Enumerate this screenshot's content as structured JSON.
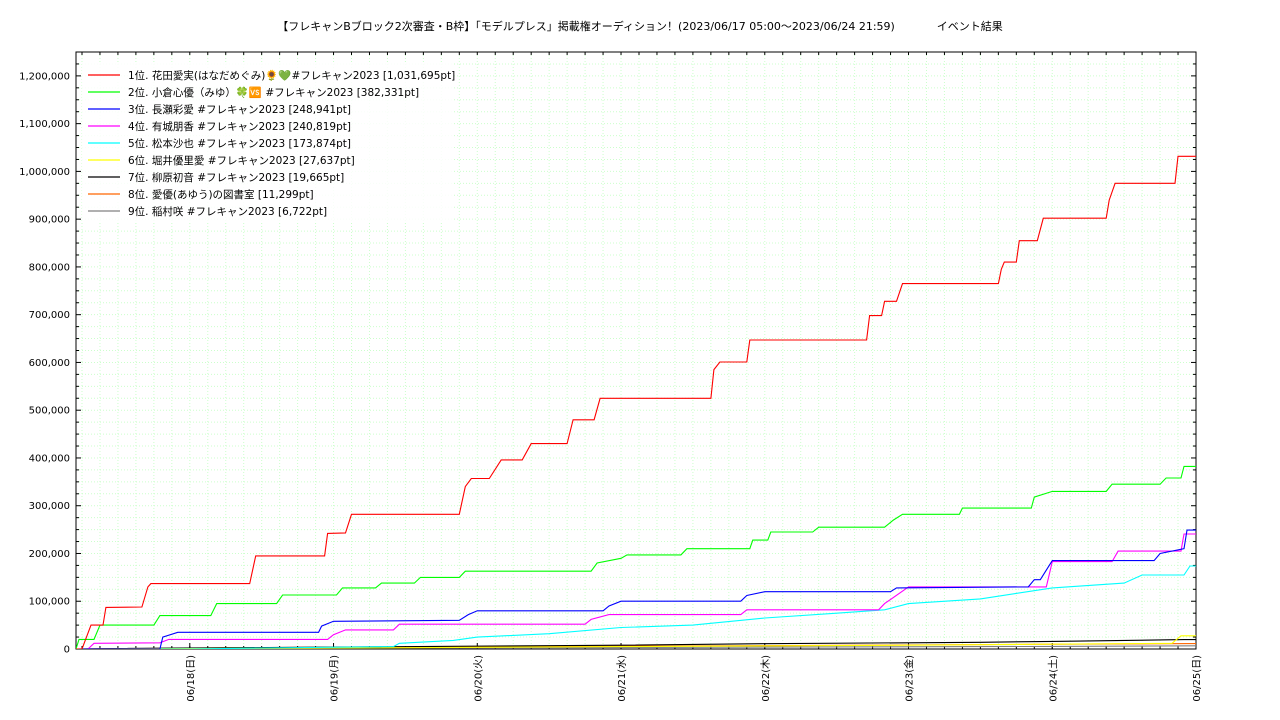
{
  "chart_data": {
    "type": "line",
    "title": "【フレキャンBブロック2次審査・B枠】「モデルプレス」掲載権オーディション！(2023/06/17 05:00〜2023/06/24 21:59)            イベント結果",
    "xlabel": "",
    "ylabel": "",
    "ylim": [
      0,
      1250000
    ],
    "xlim": [
      "2023-06-17 05:00",
      "2023-06-25 00:00"
    ],
    "grid": true,
    "legend_position": "top-left",
    "yticks": [
      {
        "value": 0,
        "label": "0"
      },
      {
        "value": 100000,
        "label": "100,000"
      },
      {
        "value": 200000,
        "label": "200,000"
      },
      {
        "value": 300000,
        "label": "300,000"
      },
      {
        "value": 400000,
        "label": "400,000"
      },
      {
        "value": 500000,
        "label": "500,000"
      },
      {
        "value": 600000,
        "label": "600,000"
      },
      {
        "value": 700000,
        "label": "700,000"
      },
      {
        "value": 800000,
        "label": "800,000"
      },
      {
        "value": 900000,
        "label": "900,000"
      },
      {
        "value": 1000000,
        "label": "1,000,000"
      },
      {
        "value": 1100000,
        "label": "1,100,000"
      },
      {
        "value": 1200000,
        "label": "1,200,000"
      }
    ],
    "xticks": [
      {
        "x": "2023-06-18 00:00",
        "label": "06/18(日)"
      },
      {
        "x": "2023-06-19 00:00",
        "label": "06/19(月)"
      },
      {
        "x": "2023-06-20 00:00",
        "label": "06/20(火)"
      },
      {
        "x": "2023-06-21 00:00",
        "label": "06/21(水)"
      },
      {
        "x": "2023-06-22 00:00",
        "label": "06/22(木)"
      },
      {
        "x": "2023-06-23 00:00",
        "label": "06/23(金)"
      },
      {
        "x": "2023-06-24 00:00",
        "label": "06/24(土)"
      },
      {
        "x": "2023-06-25 00:00",
        "label": "06/25(日)"
      }
    ],
    "series": [
      {
        "name": "1位. 花田愛実(はなだめぐみ)🌻💚#フレキャン2023 [1,031,695pt]",
        "color": "#ff0000",
        "points": [
          [
            "2023-06-17 05:00",
            0
          ],
          [
            "2023-06-17 06:00",
            0
          ],
          [
            "2023-06-17 07:30",
            50000
          ],
          [
            "2023-06-17 09:30",
            50000
          ],
          [
            "2023-06-17 10:00",
            87000
          ],
          [
            "2023-06-17 16:00",
            88000
          ],
          [
            "2023-06-17 17:00",
            130000
          ],
          [
            "2023-06-17 17:30",
            137000
          ],
          [
            "2023-06-18 10:00",
            137000
          ],
          [
            "2023-06-18 11:00",
            195000
          ],
          [
            "2023-06-18 22:30",
            195000
          ],
          [
            "2023-06-18 23:00",
            242000
          ],
          [
            "2023-06-19 02:00",
            243000
          ],
          [
            "2023-06-19 03:00",
            282000
          ],
          [
            "2023-06-19 21:00",
            282000
          ],
          [
            "2023-06-19 22:00",
            340000
          ],
          [
            "2023-06-19 23:00",
            357000
          ],
          [
            "2023-06-20 02:00",
            357000
          ],
          [
            "2023-06-20 04:00",
            396000
          ],
          [
            "2023-06-20 07:30",
            396000
          ],
          [
            "2023-06-20 09:00",
            430000
          ],
          [
            "2023-06-20 15:00",
            430000
          ],
          [
            "2023-06-20 16:00",
            480000
          ],
          [
            "2023-06-20 19:30",
            480000
          ],
          [
            "2023-06-20 20:30",
            525000
          ],
          [
            "2023-06-21 15:00",
            525000
          ],
          [
            "2023-06-21 15:30",
            585000
          ],
          [
            "2023-06-21 16:30",
            601000
          ],
          [
            "2023-06-21 21:00",
            601000
          ],
          [
            "2023-06-21 21:30",
            647000
          ],
          [
            "2023-06-22 17:00",
            647000
          ],
          [
            "2023-06-22 17:30",
            698000
          ],
          [
            "2023-06-22 19:30",
            698000
          ],
          [
            "2023-06-22 20:00",
            728000
          ],
          [
            "2023-06-22 22:00",
            728000
          ],
          [
            "2023-06-22 23:00",
            765000
          ],
          [
            "2023-06-23 15:00",
            765000
          ],
          [
            "2023-06-23 15:30",
            795000
          ],
          [
            "2023-06-23 16:00",
            810000
          ],
          [
            "2023-06-23 18:00",
            810000
          ],
          [
            "2023-06-23 18:30",
            855000
          ],
          [
            "2023-06-23 21:30",
            855000
          ],
          [
            "2023-06-23 22:30",
            902000
          ],
          [
            "2023-06-24 09:00",
            902000
          ],
          [
            "2023-06-24 09:30",
            940000
          ],
          [
            "2023-06-24 10:30",
            975000
          ],
          [
            "2023-06-24 20:30",
            975000
          ],
          [
            "2023-06-24 21:00",
            1031695
          ],
          [
            "2023-06-25 00:00",
            1031695
          ]
        ]
      },
      {
        "name": "2位. 小倉心優（みゆ）🍀🆚 #フレキャン2023 [382,331pt]",
        "color": "#00ff00",
        "points": [
          [
            "2023-06-17 05:00",
            0
          ],
          [
            "2023-06-17 05:30",
            20000
          ],
          [
            "2023-06-17 08:00",
            20000
          ],
          [
            "2023-06-17 09:00",
            50000
          ],
          [
            "2023-06-17 18:00",
            50000
          ],
          [
            "2023-06-17 19:00",
            70000
          ],
          [
            "2023-06-18 03:30",
            70000
          ],
          [
            "2023-06-18 04:30",
            95000
          ],
          [
            "2023-06-18 14:30",
            95000
          ],
          [
            "2023-06-18 15:30",
            113000
          ],
          [
            "2023-06-19 00:30",
            113000
          ],
          [
            "2023-06-19 01:30",
            128000
          ],
          [
            "2023-06-19 07:00",
            128000
          ],
          [
            "2023-06-19 08:00",
            138000
          ],
          [
            "2023-06-19 13:30",
            138000
          ],
          [
            "2023-06-19 14:30",
            150000
          ],
          [
            "2023-06-19 21:00",
            150000
          ],
          [
            "2023-06-19 22:00",
            163000
          ],
          [
            "2023-06-20 19:00",
            163000
          ],
          [
            "2023-06-20 20:00",
            180000
          ],
          [
            "2023-06-21 00:00",
            190000
          ],
          [
            "2023-06-21 01:00",
            197000
          ],
          [
            "2023-06-21 10:00",
            197000
          ],
          [
            "2023-06-21 11:00",
            210000
          ],
          [
            "2023-06-21 21:30",
            210000
          ],
          [
            "2023-06-21 22:00",
            228000
          ],
          [
            "2023-06-22 00:30",
            228000
          ],
          [
            "2023-06-22 01:00",
            245000
          ],
          [
            "2023-06-22 08:00",
            245000
          ],
          [
            "2023-06-22 09:00",
            255000
          ],
          [
            "2023-06-22 20:00",
            255000
          ],
          [
            "2023-06-22 21:30",
            270000
          ],
          [
            "2023-06-22 23:00",
            282000
          ],
          [
            "2023-06-23 08:30",
            282000
          ],
          [
            "2023-06-23 09:00",
            295000
          ],
          [
            "2023-06-23 20:30",
            295000
          ],
          [
            "2023-06-23 21:00",
            318000
          ],
          [
            "2023-06-24 00:00",
            330000
          ],
          [
            "2023-06-24 09:00",
            330000
          ],
          [
            "2023-06-24 10:00",
            345000
          ],
          [
            "2023-06-24 18:00",
            345000
          ],
          [
            "2023-06-24 19:00",
            358000
          ],
          [
            "2023-06-24 21:30",
            358000
          ],
          [
            "2023-06-24 22:00",
            382331
          ],
          [
            "2023-06-25 00:00",
            382331
          ]
        ]
      },
      {
        "name": "3位. 長瀬彩愛 #フレキャン2023 [248,941pt]",
        "color": "#0000ff",
        "points": [
          [
            "2023-06-17 05:00",
            0
          ],
          [
            "2023-06-17 09:00",
            0
          ],
          [
            "2023-06-17 19:00",
            0
          ],
          [
            "2023-06-17 19:30",
            25000
          ],
          [
            "2023-06-17 22:00",
            35000
          ],
          [
            "2023-06-18 21:30",
            35000
          ],
          [
            "2023-06-18 22:00",
            48000
          ],
          [
            "2023-06-19 00:00",
            58000
          ],
          [
            "2023-06-19 21:00",
            60000
          ],
          [
            "2023-06-19 22:30",
            72000
          ],
          [
            "2023-06-20 00:00",
            80000
          ],
          [
            "2023-06-20 21:00",
            80000
          ],
          [
            "2023-06-20 22:00",
            90000
          ],
          [
            "2023-06-21 00:00",
            100000
          ],
          [
            "2023-06-21 20:00",
            100000
          ],
          [
            "2023-06-21 21:00",
            112000
          ],
          [
            "2023-06-22 00:00",
            120000
          ],
          [
            "2023-06-22 21:00",
            120000
          ],
          [
            "2023-06-22 22:00",
            128000
          ],
          [
            "2023-06-23 20:00",
            130000
          ],
          [
            "2023-06-23 21:00",
            145000
          ],
          [
            "2023-06-23 22:00",
            145000
          ],
          [
            "2023-06-24 00:00",
            185000
          ],
          [
            "2023-06-24 17:00",
            185000
          ],
          [
            "2023-06-24 18:00",
            200000
          ],
          [
            "2023-06-24 22:00",
            210000
          ],
          [
            "2023-06-24 22:30",
            248941
          ],
          [
            "2023-06-25 00:00",
            248941
          ]
        ]
      },
      {
        "name": "4位. 有城朋香 #フレキャン2023 [240,819pt]",
        "color": "#ff00ff",
        "points": [
          [
            "2023-06-17 05:00",
            0
          ],
          [
            "2023-06-17 07:00",
            0
          ],
          [
            "2023-06-17 08:00",
            12000
          ],
          [
            "2023-06-17 19:00",
            13000
          ],
          [
            "2023-06-17 20:30",
            20000
          ],
          [
            "2023-06-18 23:00",
            20000
          ],
          [
            "2023-06-19 00:00",
            30000
          ],
          [
            "2023-06-19 02:00",
            40000
          ],
          [
            "2023-06-19 10:00",
            40000
          ],
          [
            "2023-06-19 11:00",
            52000
          ],
          [
            "2023-06-20 18:00",
            52000
          ],
          [
            "2023-06-20 19:00",
            62000
          ],
          [
            "2023-06-20 22:00",
            72000
          ],
          [
            "2023-06-21 20:00",
            72000
          ],
          [
            "2023-06-21 21:00",
            82000
          ],
          [
            "2023-06-22 19:00",
            82000
          ],
          [
            "2023-06-22 20:00",
            95000
          ],
          [
            "2023-06-23 00:00",
            130000
          ],
          [
            "2023-06-23 23:00",
            130000
          ],
          [
            "2023-06-24 00:00",
            183000
          ],
          [
            "2023-06-24 10:00",
            183000
          ],
          [
            "2023-06-24 11:00",
            205000
          ],
          [
            "2023-06-24 21:30",
            205000
          ],
          [
            "2023-06-24 22:00",
            240819
          ],
          [
            "2023-06-25 00:00",
            240819
          ]
        ]
      },
      {
        "name": "5位. 松本沙也 #フレキャン2023 [173,874pt]",
        "color": "#00ffff",
        "points": [
          [
            "2023-06-17 05:00",
            0
          ],
          [
            "2023-06-18 00:00",
            0
          ],
          [
            "2023-06-18 12:00",
            2000
          ],
          [
            "2023-06-19 10:00",
            5000
          ],
          [
            "2023-06-19 11:00",
            12000
          ],
          [
            "2023-06-19 20:00",
            18000
          ],
          [
            "2023-06-20 00:00",
            25000
          ],
          [
            "2023-06-20 12:00",
            32000
          ],
          [
            "2023-06-21 00:00",
            45000
          ],
          [
            "2023-06-21 12:00",
            50000
          ],
          [
            "2023-06-22 00:00",
            65000
          ],
          [
            "2023-06-22 12:00",
            75000
          ],
          [
            "2023-06-22 20:00",
            82000
          ],
          [
            "2023-06-23 00:00",
            95000
          ],
          [
            "2023-06-23 12:00",
            105000
          ],
          [
            "2023-06-24 00:00",
            128000
          ],
          [
            "2023-06-24 12:00",
            138000
          ],
          [
            "2023-06-24 15:00",
            155000
          ],
          [
            "2023-06-24 22:00",
            155000
          ],
          [
            "2023-06-24 23:00",
            173874
          ],
          [
            "2023-06-25 00:00",
            173874
          ]
        ]
      },
      {
        "name": "6位. 堀井優里愛 #フレキャン2023 [27,637pt]",
        "color": "#ffff00",
        "points": [
          [
            "2023-06-17 05:00",
            0
          ],
          [
            "2023-06-19 00:00",
            2000
          ],
          [
            "2023-06-21 00:00",
            5000
          ],
          [
            "2023-06-23 00:00",
            8000
          ],
          [
            "2023-06-24 20:00",
            12000
          ],
          [
            "2023-06-24 21:30",
            27637
          ],
          [
            "2023-06-25 00:00",
            27637
          ]
        ]
      },
      {
        "name": "7位. 柳原初音 #フレキャン2023 [19,665pt]",
        "color": "#000000",
        "points": [
          [
            "2023-06-17 05:00",
            0
          ],
          [
            "2023-06-17 12:00",
            1000
          ],
          [
            "2023-06-19 00:00",
            4000
          ],
          [
            "2023-06-20 12:00",
            7000
          ],
          [
            "2023-06-21 00:00",
            8000
          ],
          [
            "2023-06-22 00:00",
            11000
          ],
          [
            "2023-06-23 12:00",
            14000
          ],
          [
            "2023-06-24 00:00",
            16000
          ],
          [
            "2023-06-24 22:00",
            19665
          ],
          [
            "2023-06-25 00:00",
            19665
          ]
        ]
      },
      {
        "name": "8位. 愛優(あゆう)の図書室 [11,299pt]",
        "color": "#ff6600",
        "points": [
          [
            "2023-06-17 05:00",
            0
          ],
          [
            "2023-06-18 12:00",
            3000
          ],
          [
            "2023-06-20 00:00",
            5000
          ],
          [
            "2023-06-22 00:00",
            7000
          ],
          [
            "2023-06-24 00:00",
            10000
          ],
          [
            "2023-06-25 00:00",
            11299
          ]
        ]
      },
      {
        "name": "9位. 稲村咲 #フレキャン2023 [6,722pt]",
        "color": "#808080",
        "points": [
          [
            "2023-06-17 05:00",
            0
          ],
          [
            "2023-06-18 12:00",
            1000
          ],
          [
            "2023-06-20 00:00",
            2500
          ],
          [
            "2023-06-22 00:00",
            4000
          ],
          [
            "2023-06-24 00:00",
            5500
          ],
          [
            "2023-06-25 00:00",
            6722
          ]
        ]
      }
    ]
  }
}
